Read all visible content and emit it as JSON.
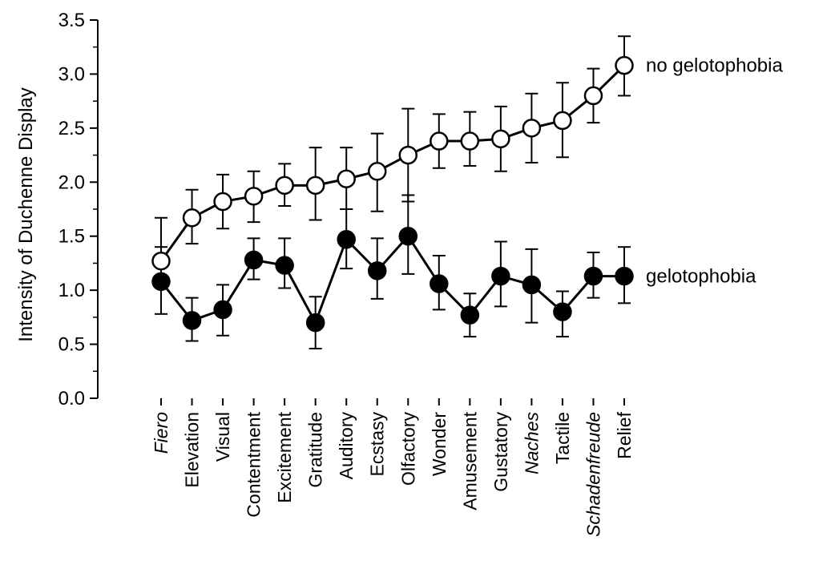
{
  "chart_data": {
    "type": "line",
    "ylabel": "Intensity of Duchenne Display",
    "xlabel": "",
    "ylim": [
      0,
      3.5
    ],
    "yticks": [
      0.0,
      0.5,
      1.0,
      1.5,
      2.0,
      2.5,
      3.0,
      3.5
    ],
    "ytick_labels": [
      "0.0",
      "0.5",
      "1.0",
      "1.5",
      "2.0",
      "2.5",
      "3.0",
      "3.5"
    ],
    "y_minor_ticks": true,
    "grid": false,
    "legend": "direct labels at right end of lines",
    "categories": [
      "Fiero",
      "Elevation",
      "Visual",
      "Contentment",
      "Excitement",
      "Gratitude",
      "Auditory",
      "Ecstasy",
      "Olfactory",
      "Wonder",
      "Amusement",
      "Gustatory",
      "Naches",
      "Tactile",
      "Schadenfreude",
      "Relief"
    ],
    "italic_categories": [
      "Fiero",
      "Naches",
      "Schadenfreude"
    ],
    "series": [
      {
        "name": "no gelotophobia",
        "marker": "open-circle",
        "color": "#000000",
        "values": [
          1.27,
          1.67,
          1.82,
          1.87,
          1.97,
          1.97,
          2.03,
          2.1,
          2.25,
          2.38,
          2.38,
          2.4,
          2.5,
          2.57,
          2.8,
          3.08
        ],
        "err_low": [
          1.12,
          1.43,
          1.57,
          1.63,
          1.78,
          1.65,
          1.75,
          1.73,
          1.82,
          2.13,
          2.15,
          2.1,
          2.18,
          2.23,
          2.55,
          2.8
        ],
        "err_high": [
          1.67,
          1.93,
          2.07,
          2.1,
          2.17,
          2.32,
          2.32,
          2.45,
          2.68,
          2.63,
          2.65,
          2.7,
          2.82,
          2.92,
          3.05,
          3.35
        ]
      },
      {
        "name": "gelotophobia",
        "marker": "filled-circle",
        "color": "#000000",
        "values": [
          1.08,
          0.72,
          0.82,
          1.28,
          1.23,
          0.7,
          1.47,
          1.18,
          1.5,
          1.06,
          0.77,
          1.13,
          1.05,
          0.8,
          1.13,
          1.13
        ],
        "err_low": [
          0.78,
          0.53,
          0.58,
          1.1,
          1.02,
          0.46,
          1.2,
          0.92,
          1.15,
          0.82,
          0.57,
          0.85,
          0.7,
          0.57,
          0.93,
          0.88
        ],
        "err_high": [
          1.4,
          0.93,
          1.05,
          1.48,
          1.48,
          0.94,
          1.75,
          1.48,
          1.88,
          1.32,
          0.97,
          1.45,
          1.38,
          0.99,
          1.35,
          1.4
        ]
      }
    ]
  }
}
